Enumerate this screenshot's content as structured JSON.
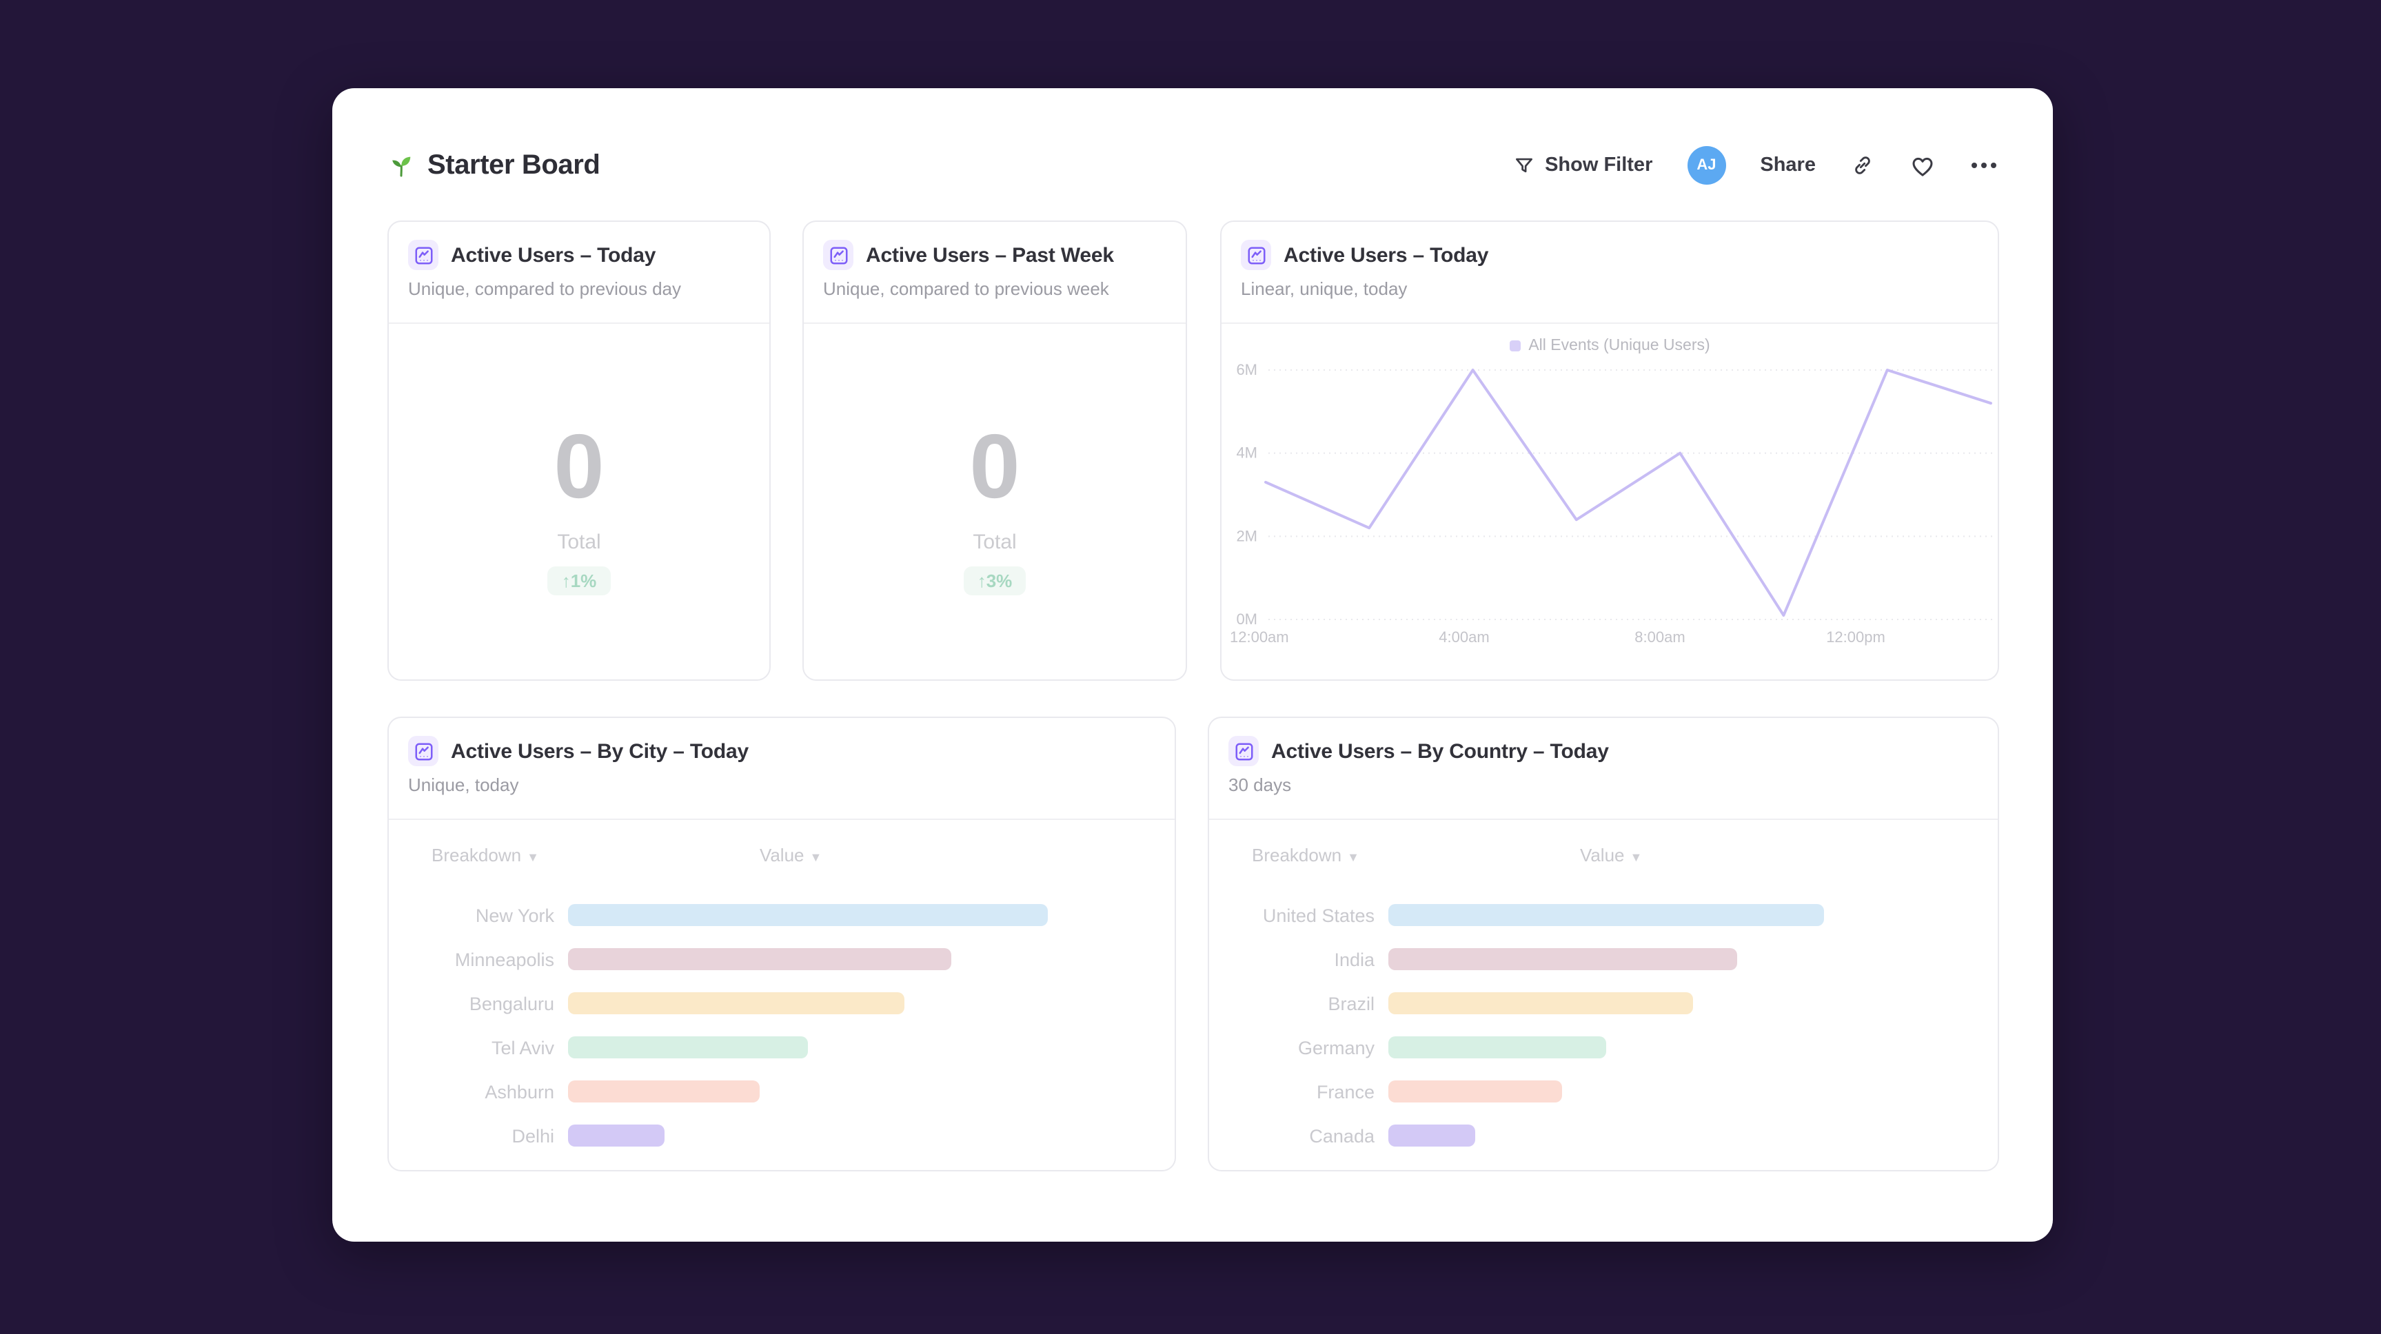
{
  "header": {
    "title": "Starter Board",
    "actions": {
      "show_filter_label": "Show Filter",
      "avatar_initials": "AJ",
      "avatar_color": "#5ca9f2",
      "share_label": "Share"
    }
  },
  "cards": {
    "today": {
      "title": "Active Users – Today",
      "subtitle": "Unique, compared to previous day",
      "value": "0",
      "value_label": "Total",
      "delta": "↑1%",
      "delta_color": "#a7d8c1"
    },
    "past_week": {
      "title": "Active Users – Past Week",
      "subtitle": "Unique, compared to previous week",
      "value": "0",
      "value_label": "Total",
      "delta": "↑3%",
      "delta_color": "#a7d8c1"
    },
    "line": {
      "title": "Active Users – Today",
      "subtitle": "Linear, unique, today",
      "legend_label": "All Events (Unique Users)",
      "legend_color": "#d8d0f8"
    },
    "by_city": {
      "title": "Active Users – By City – Today",
      "subtitle": "Unique, today",
      "col_breakdown": "Breakdown",
      "col_value": "Value"
    },
    "by_country": {
      "title": "Active Users – By Country – Today",
      "subtitle": "30 days",
      "col_breakdown": "Breakdown",
      "col_value": "Value"
    }
  },
  "chart_data": [
    {
      "type": "line",
      "title": "Active Users – Today",
      "series": [
        {
          "name": "All Events (Unique Users)",
          "x": [
            "12:00am",
            "2:00am",
            "4:00am",
            "6:00am",
            "8:00am",
            "10:00am",
            "12:00pm",
            "2:00pm"
          ],
          "values_millions": [
            3.3,
            2.2,
            6.0,
            2.4,
            4.0,
            0.1,
            6.0,
            5.2
          ]
        }
      ],
      "yticks": [
        "0M",
        "2M",
        "4M",
        "6M"
      ],
      "xticks": [
        "12:00am",
        "4:00am",
        "8:00am",
        "12:00pm"
      ],
      "ylim_millions": [
        0,
        7.1
      ],
      "grid": "horizontal-dotted",
      "legend_position": "top-center",
      "line_color": "#c7bcf4"
    },
    {
      "type": "bar",
      "title": "Active Users – By City – Today",
      "orientation": "horizontal",
      "categories": [
        "New York",
        "Minneapolis",
        "Bengaluru",
        "Tel Aviv",
        "Ashburn",
        "Delhi"
      ],
      "values_relative_pct": [
        100,
        80,
        70,
        50,
        40,
        20
      ],
      "bar_colors": [
        "#d5e9f7",
        "#e8d3da",
        "#fbe9c8",
        "#d7f0e4",
        "#fcdcd3",
        "#d3c9f6"
      ]
    },
    {
      "type": "bar",
      "title": "Active Users – By Country – Today",
      "orientation": "horizontal",
      "categories": [
        "United States",
        "India",
        "Brazil",
        "Germany",
        "France",
        "Canada"
      ],
      "values_relative_pct": [
        100,
        80,
        70,
        50,
        40,
        20
      ],
      "bar_colors": [
        "#d5e9f7",
        "#e8d3da",
        "#fbe9c8",
        "#d7f0e4",
        "#fcdcd3",
        "#d3c9f6"
      ]
    }
  ]
}
